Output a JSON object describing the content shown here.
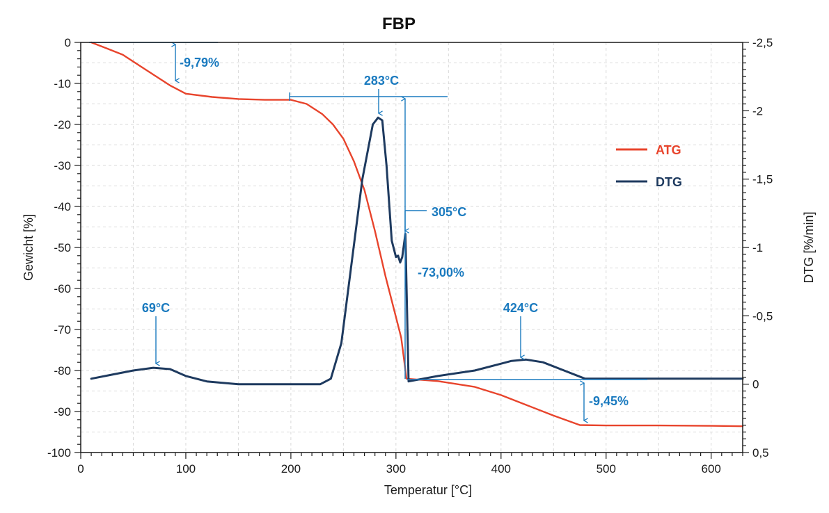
{
  "chart_data": {
    "type": "line",
    "title": "FBP",
    "xlabel": "Temperatur [°C]",
    "ylabel": "Gewicht [%]",
    "y2label": "DTG [%/min]",
    "xlim": [
      0,
      630
    ],
    "ylim": [
      -100,
      0
    ],
    "y2lim": [
      -2.5,
      0.5
    ],
    "y2_inverted": true,
    "x_ticks": [
      0,
      100,
      200,
      300,
      400,
      500,
      600
    ],
    "x_tick_labels": [
      "0",
      "100",
      "200",
      "300",
      "400",
      "500",
      "600"
    ],
    "y_ticks": [
      0,
      -10,
      -20,
      -30,
      -40,
      -50,
      -60,
      -70,
      -80,
      -90,
      -100
    ],
    "y_tick_labels": [
      "0",
      "-10",
      "-20",
      "-30",
      "-40",
      "-50",
      "-60",
      "-70",
      "-80",
      "-90",
      "-100"
    ],
    "y2_ticks": [
      -2.5,
      -2,
      -1.5,
      -1,
      -0.5,
      0,
      0.5
    ],
    "y2_tick_labels": [
      "-2,5",
      "-2",
      "-1,5",
      "-1",
      "-0,5",
      "0",
      "0,5"
    ],
    "grid": true,
    "legend_position": "right",
    "series": [
      {
        "name": "ATG",
        "axis": "left",
        "color": "#e8442c",
        "x": [
          10,
          25,
          40,
          55,
          70,
          85,
          100,
          125,
          150,
          175,
          200,
          215,
          230,
          240,
          250,
          260,
          270,
          280,
          290,
          300,
          305,
          310,
          340,
          375,
          400,
          425,
          450,
          475,
          500,
          550,
          600,
          630
        ],
        "y": [
          0,
          -1.5,
          -3,
          -5.5,
          -8,
          -10.5,
          -12.5,
          -13.3,
          -13.8,
          -14,
          -14,
          -15,
          -17.5,
          -20,
          -23.5,
          -29,
          -36,
          -46,
          -57,
          -67,
          -72,
          -82,
          -82.6,
          -84,
          -86,
          -88.5,
          -91,
          -93.3,
          -93.4,
          -93.4,
          -93.5,
          -93.6
        ]
      },
      {
        "name": "DTG",
        "axis": "right",
        "color": "#1e3a5f",
        "x": [
          10,
          30,
          50,
          69,
          85,
          100,
          120,
          150,
          180,
          200,
          215,
          228,
          238,
          248,
          258,
          268,
          278,
          283,
          287,
          291,
          296,
          300,
          302,
          304,
          306,
          309,
          312,
          340,
          375,
          400,
          410,
          424,
          440,
          460,
          480,
          500,
          550,
          600,
          630
        ],
        "y": [
          -0.04,
          -0.07,
          -0.1,
          -0.12,
          -0.11,
          -0.06,
          -0.02,
          0,
          0,
          0,
          0,
          0,
          -0.04,
          -0.3,
          -0.9,
          -1.5,
          -1.9,
          -1.95,
          -1.93,
          -1.6,
          -1.05,
          -0.93,
          -0.94,
          -0.89,
          -0.93,
          -1.1,
          -0.02,
          -0.06,
          -0.1,
          -0.15,
          -0.17,
          -0.18,
          -0.16,
          -0.1,
          -0.04,
          -0.04,
          -0.04,
          -0.04,
          -0.04
        ]
      }
    ],
    "annotations": [
      {
        "text": "-9,79%"
      },
      {
        "text": "283°C"
      },
      {
        "text": "305°C"
      },
      {
        "text": "-73,00%"
      },
      {
        "text": "69°C"
      },
      {
        "text": "424°C"
      },
      {
        "text": "-9,45%"
      }
    ],
    "annotation_color": "#1a7abf",
    "grid_color": "#d9d9d9",
    "axis_color": "#1a1a1a"
  }
}
